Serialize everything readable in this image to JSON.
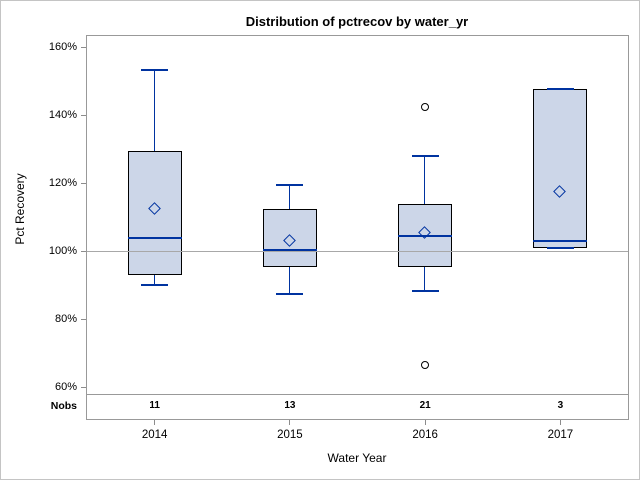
{
  "window": {
    "background": "#ffffff",
    "border_color": "#c4c4c4"
  },
  "chart_data": {
    "type": "box",
    "title": "Distribution of pctrecov by water_yr",
    "xlabel": "Water Year",
    "ylabel": "Pct Recovery",
    "ylim": [
      58,
      163.5
    ],
    "yticks": [
      60,
      80,
      100,
      120,
      140,
      160
    ],
    "ytick_suffix": "%",
    "reference_line": 100,
    "grid": "off",
    "legend": "none",
    "categories": [
      "2014",
      "2015",
      "2016",
      "2017"
    ],
    "nobs_label": "Nobs",
    "nobs": [
      "11",
      "13",
      "21",
      "3"
    ],
    "series": [
      {
        "category": "2014",
        "nobs": 11,
        "whisker_low": 90,
        "q1": 93,
        "median": 104,
        "q3": 129.5,
        "whisker_high": 153.5,
        "mean": 112.5,
        "outliers": []
      },
      {
        "category": "2015",
        "nobs": 13,
        "whisker_low": 87.5,
        "q1": 95.5,
        "median": 100.5,
        "q3": 112.5,
        "whisker_high": 119.5,
        "mean": 103,
        "outliers": []
      },
      {
        "category": "2016",
        "nobs": 21,
        "whisker_low": 88.5,
        "q1": 95.5,
        "median": 104.5,
        "q3": 114,
        "whisker_high": 128,
        "mean": 105.5,
        "outliers": [
          142.5,
          66.5
        ]
      },
      {
        "category": "2017",
        "nobs": 3,
        "whisker_low": 101,
        "q1": 101,
        "median": 103,
        "q3": 148,
        "whisker_high": 148,
        "mean": 117.5,
        "outliers": []
      }
    ],
    "colors": {
      "box_fill": "#ccd6e8",
      "box_border": "#000000",
      "line_blue": "#0033a0",
      "outlier_border": "#000000",
      "reference_line": "#a8a8a8",
      "frame": "#999999",
      "text": "#000000"
    }
  }
}
